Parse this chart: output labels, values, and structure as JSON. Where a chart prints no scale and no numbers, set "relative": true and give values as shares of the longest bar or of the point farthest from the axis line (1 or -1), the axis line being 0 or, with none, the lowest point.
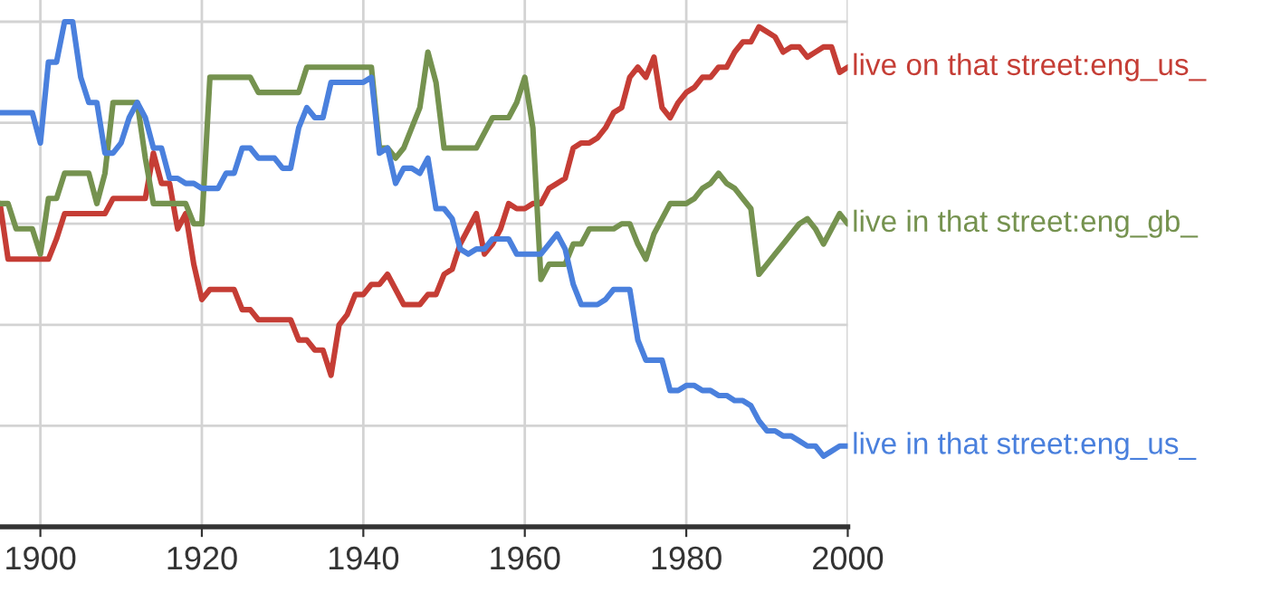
{
  "chart_data": {
    "type": "line",
    "relative": true,
    "grid": true,
    "legend": false,
    "x": [
      1895,
      1896,
      1897,
      1898,
      1899,
      1900,
      1901,
      1902,
      1903,
      1904,
      1905,
      1906,
      1907,
      1908,
      1909,
      1910,
      1911,
      1912,
      1913,
      1914,
      1915,
      1916,
      1917,
      1918,
      1919,
      1920,
      1921,
      1922,
      1923,
      1924,
      1925,
      1926,
      1927,
      1928,
      1929,
      1930,
      1931,
      1932,
      1933,
      1934,
      1935,
      1936,
      1937,
      1938,
      1939,
      1940,
      1941,
      1942,
      1943,
      1944,
      1945,
      1946,
      1947,
      1948,
      1949,
      1950,
      1951,
      1952,
      1953,
      1954,
      1955,
      1956,
      1957,
      1958,
      1959,
      1960,
      1961,
      1962,
      1963,
      1964,
      1965,
      1966,
      1967,
      1968,
      1969,
      1970,
      1971,
      1972,
      1973,
      1974,
      1975,
      1976,
      1977,
      1978,
      1979,
      1980,
      1981,
      1982,
      1983,
      1984,
      1985,
      1986,
      1987,
      1988,
      1989,
      1990,
      1991,
      1992,
      1993,
      1994,
      1995,
      1996,
      1997,
      1998,
      1999,
      2000
    ],
    "xlim": [
      1895,
      2000
    ],
    "xticks": [
      1900,
      1920,
      1940,
      1960,
      1980,
      2000
    ],
    "series": [
      {
        "name": "live on that street:eng_us_",
        "color": "#c53d35",
        "values": [
          0.64,
          0.53,
          0.53,
          0.53,
          0.53,
          0.53,
          0.53,
          0.57,
          0.62,
          0.62,
          0.62,
          0.62,
          0.62,
          0.62,
          0.65,
          0.65,
          0.65,
          0.65,
          0.65,
          0.74,
          0.68,
          0.68,
          0.59,
          0.62,
          0.52,
          0.45,
          0.47,
          0.47,
          0.47,
          0.47,
          0.43,
          0.43,
          0.41,
          0.41,
          0.41,
          0.41,
          0.41,
          0.37,
          0.37,
          0.35,
          0.35,
          0.3,
          0.4,
          0.42,
          0.46,
          0.46,
          0.48,
          0.48,
          0.5,
          0.47,
          0.44,
          0.44,
          0.44,
          0.46,
          0.46,
          0.5,
          0.51,
          0.56,
          0.59,
          0.62,
          0.54,
          0.56,
          0.59,
          0.64,
          0.63,
          0.63,
          0.64,
          0.64,
          0.67,
          0.68,
          0.69,
          0.75,
          0.76,
          0.76,
          0.77,
          0.79,
          0.82,
          0.83,
          0.89,
          0.91,
          0.89,
          0.93,
          0.83,
          0.81,
          0.84,
          0.86,
          0.87,
          0.89,
          0.89,
          0.91,
          0.91,
          0.94,
          0.96,
          0.96,
          0.99,
          0.98,
          0.97,
          0.94,
          0.95,
          0.95,
          0.93,
          0.94,
          0.95,
          0.95,
          0.9,
          0.91
        ]
      },
      {
        "name": "live in that street:eng_gb_",
        "color": "#75924f",
        "values": [
          0.64,
          0.64,
          0.59,
          0.59,
          0.59,
          0.54,
          0.65,
          0.65,
          0.7,
          0.7,
          0.7,
          0.7,
          0.64,
          0.7,
          0.84,
          0.84,
          0.84,
          0.84,
          0.73,
          0.64,
          0.64,
          0.64,
          0.64,
          0.64,
          0.6,
          0.6,
          0.89,
          0.89,
          0.89,
          0.89,
          0.89,
          0.89,
          0.86,
          0.86,
          0.86,
          0.86,
          0.86,
          0.86,
          0.91,
          0.91,
          0.91,
          0.91,
          0.91,
          0.91,
          0.91,
          0.91,
          0.91,
          0.75,
          0.75,
          0.73,
          0.75,
          0.79,
          0.83,
          0.94,
          0.88,
          0.75,
          0.75,
          0.75,
          0.75,
          0.75,
          0.78,
          0.81,
          0.81,
          0.81,
          0.84,
          0.89,
          0.79,
          0.49,
          0.52,
          0.52,
          0.52,
          0.56,
          0.56,
          0.59,
          0.59,
          0.59,
          0.59,
          0.6,
          0.6,
          0.56,
          0.53,
          0.58,
          0.61,
          0.64,
          0.64,
          0.64,
          0.65,
          0.67,
          0.68,
          0.7,
          0.68,
          0.67,
          0.65,
          0.63,
          0.5,
          0.52,
          0.54,
          0.56,
          0.58,
          0.6,
          0.61,
          0.59,
          0.56,
          0.59,
          0.62,
          0.6
        ]
      },
      {
        "name": "live in that street:eng_us_",
        "color": "#4a80dd",
        "values": [
          0.82,
          0.82,
          0.82,
          0.82,
          0.82,
          0.76,
          0.92,
          0.92,
          1.0,
          1.0,
          0.89,
          0.84,
          0.84,
          0.74,
          0.74,
          0.76,
          0.81,
          0.84,
          0.81,
          0.75,
          0.75,
          0.69,
          0.69,
          0.68,
          0.68,
          0.67,
          0.67,
          0.67,
          0.7,
          0.7,
          0.75,
          0.75,
          0.73,
          0.73,
          0.73,
          0.71,
          0.71,
          0.79,
          0.83,
          0.81,
          0.81,
          0.88,
          0.88,
          0.88,
          0.88,
          0.88,
          0.89,
          0.74,
          0.75,
          0.68,
          0.71,
          0.71,
          0.7,
          0.73,
          0.63,
          0.63,
          0.61,
          0.55,
          0.54,
          0.55,
          0.55,
          0.57,
          0.57,
          0.57,
          0.54,
          0.54,
          0.54,
          0.54,
          0.56,
          0.58,
          0.55,
          0.48,
          0.44,
          0.44,
          0.44,
          0.45,
          0.47,
          0.47,
          0.47,
          0.37,
          0.33,
          0.33,
          0.33,
          0.27,
          0.27,
          0.28,
          0.28,
          0.27,
          0.27,
          0.26,
          0.26,
          0.25,
          0.25,
          0.24,
          0.21,
          0.19,
          0.19,
          0.18,
          0.18,
          0.17,
          0.16,
          0.16,
          0.14,
          0.15,
          0.16,
          0.16
        ]
      }
    ]
  }
}
